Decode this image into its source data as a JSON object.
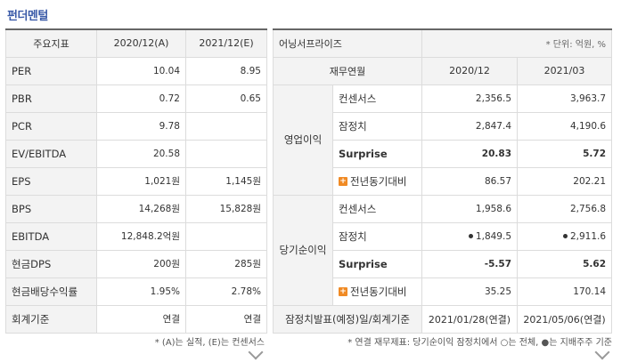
{
  "title": "펀더멘털",
  "left": {
    "headers": [
      "주요지표",
      "2020/12(A)",
      "2021/12(E)"
    ],
    "rows": [
      {
        "label": "PER",
        "a": "10.04",
        "e": "8.95"
      },
      {
        "label": "PBR",
        "a": "0.72",
        "e": "0.65"
      },
      {
        "label": "PCR",
        "a": "9.78",
        "e": ""
      },
      {
        "label": "EV/EBITDA",
        "a": "20.58",
        "e": ""
      },
      {
        "label": "EPS",
        "a": "1,021원",
        "e": "1,145원"
      },
      {
        "label": "BPS",
        "a": "14,268원",
        "e": "15,828원"
      },
      {
        "label": "EBITDA",
        "a": "12,848.2억원",
        "e": ""
      },
      {
        "label": "현금DPS",
        "a": "200원",
        "e": "285원"
      },
      {
        "label": "현금배당수익률",
        "a": "1.95%",
        "e": "2.78%"
      },
      {
        "label": "회계기준",
        "a": "연결",
        "e": "연결"
      }
    ],
    "note": "* (A)는 실적, (E)는 컨센서스"
  },
  "right": {
    "company": "어닝서프라이즈",
    "unit": "* 단위: 억원, %",
    "headers": [
      "재무연월",
      "2020/12",
      "2021/03"
    ],
    "groups": [
      {
        "name": "영업이익",
        "rows": [
          {
            "label": "컨센서스",
            "v1": "2,356.5",
            "v2": "3,963.7"
          },
          {
            "label": "잠정치",
            "v1": "2,847.4",
            "v2": "4,190.6"
          },
          {
            "label": "Surprise",
            "v1": "20.83",
            "v2": "5.72"
          },
          {
            "label": "전년동기대비",
            "v1": "86.57",
            "v2": "202.21"
          }
        ]
      },
      {
        "name": "당기순이익",
        "rows": [
          {
            "label": "컨센서스",
            "v1": "1,958.6",
            "v2": "2,756.8"
          },
          {
            "label": "잠정치",
            "v1": "1,849.5",
            "v2": "2,911.6"
          },
          {
            "label": "Surprise",
            "v1": "-5.57",
            "v2": "5.62"
          },
          {
            "label": "전년동기대비",
            "v1": "35.25",
            "v2": "170.14"
          }
        ]
      }
    ],
    "footer": {
      "label": "잠정치발표(예정)일/회계기준",
      "v1": "2021/01/28(연결)",
      "v2": "2021/05/06(연결)"
    },
    "note": "* 연결 재무제표: 당기순이익 잠정치에서 ○는 전체, ●는 지배주주 기준"
  }
}
